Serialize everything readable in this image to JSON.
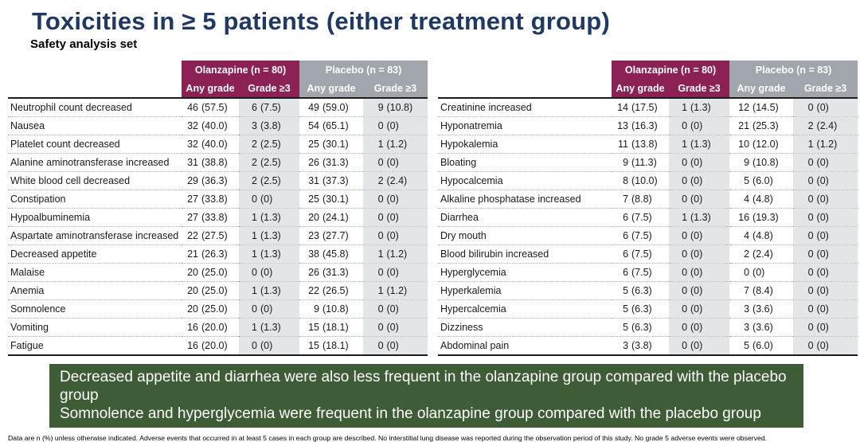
{
  "title": "Toxicities in ≥ 5 patients (either treatment group)",
  "subtitle": "Safety analysis set",
  "colors": {
    "title_navy": "#1F3864",
    "olanzapine_header": "#8B2154",
    "placebo_header": "#A0A6AB",
    "shaded_column": "#E2E6E9",
    "banner_green": "#3E5C35"
  },
  "column_headers": {
    "olanzapine": "Olanzapine (n = 80)",
    "placebo": "Placebo (n = 83)",
    "any_grade": "Any grade",
    "grade_ge3": "Grade ≥3"
  },
  "tables": [
    {
      "rows": [
        {
          "label": "Neutrophil count decreased",
          "cells": [
            "46 (57.5)",
            "6 (7.5)",
            "49 (59.0)",
            "9 (10.8)"
          ]
        },
        {
          "label": "Nausea",
          "cells": [
            "32 (40.0)",
            "3 (3.8)",
            "54 (65.1)",
            "0 (0)"
          ]
        },
        {
          "label": "Platelet count decreased",
          "cells": [
            "32 (40.0)",
            "2 (2.5)",
            "25 (30.1)",
            "1 (1.2)"
          ]
        },
        {
          "label": "Alanine aminotransferase increased",
          "cells": [
            "31 (38.8)",
            "2 (2.5)",
            "26 (31.3)",
            "0 (0)"
          ]
        },
        {
          "label": "White blood cell decreased",
          "cells": [
            "29 (36.3)",
            "2 (2.5)",
            "31 (37.3)",
            "2 (2.4)"
          ]
        },
        {
          "label": "Constipation",
          "cells": [
            "27 (33.8)",
            "0 (0)",
            "25 (30.1)",
            "0 (0)"
          ]
        },
        {
          "label": "Hypoalbuminemia",
          "cells": [
            "27 (33.8)",
            "1 (1.3)",
            "20 (24.1)",
            "0 (0)"
          ]
        },
        {
          "label": "Aspartate aminotransferase increased",
          "cells": [
            "22 (27.5)",
            "1 (1.3)",
            "23 (27.7)",
            "0 (0)"
          ]
        },
        {
          "label": "Decreased appetite",
          "cells": [
            "21 (26.3)",
            "1 (1.3)",
            "38 (45.8)",
            "1 (1.2)"
          ]
        },
        {
          "label": "Malaise",
          "cells": [
            "20 (25.0)",
            "0 (0)",
            "26 (31.3)",
            "0 (0)"
          ]
        },
        {
          "label": "Anemia",
          "cells": [
            "20 (25.0)",
            "1 (1.3)",
            "22 (26.5)",
            "1 (1.2)"
          ]
        },
        {
          "label": "Somnolence",
          "cells": [
            "20 (25.0)",
            "0 (0)",
            "9 (10.8)",
            "0 (0)"
          ]
        },
        {
          "label": "Vomiting",
          "cells": [
            "16 (20.0)",
            "1 (1.3)",
            "15 (18.1)",
            "0 (0)"
          ]
        },
        {
          "label": "Fatigue",
          "cells": [
            "16 (20.0)",
            "0 (0)",
            "15 (18.1)",
            "0 (0)"
          ]
        }
      ]
    },
    {
      "rows": [
        {
          "label": "Creatinine increased",
          "cells": [
            "14 (17.5)",
            "1 (1.3)",
            "12 (14.5)",
            "0 (0)"
          ]
        },
        {
          "label": "Hyponatremia",
          "cells": [
            "13 (16.3)",
            "0 (0)",
            "21 (25.3)",
            "2 (2.4)"
          ]
        },
        {
          "label": "Hypokalemia",
          "cells": [
            "11 (13.8)",
            "1 (1.3)",
            "10 (12.0)",
            "1 (1.2)"
          ]
        },
        {
          "label": "Bloating",
          "cells": [
            "9 (11.3)",
            "0 (0)",
            "9 (10.8)",
            "0 (0)"
          ]
        },
        {
          "label": "Hypocalcemia",
          "cells": [
            "8 (10.0)",
            "0 (0)",
            "5 (6.0)",
            "0 (0)"
          ]
        },
        {
          "label": "Alkaline phosphatase increased",
          "cells": [
            "7 (8.8)",
            "0 (0)",
            "4 (4.8)",
            "0 (0)"
          ]
        },
        {
          "label": "Diarrhea",
          "cells": [
            "6 (7.5)",
            "1 (1.3)",
            "16 (19.3)",
            "0 (0)"
          ]
        },
        {
          "label": "Dry mouth",
          "cells": [
            "6 (7.5)",
            "0 (0)",
            "4 (4.8)",
            "0 (0)"
          ]
        },
        {
          "label": "Blood bilirubin increased",
          "cells": [
            "6 (7.5)",
            "0 (0)",
            "2 (2.4)",
            "0 (0)"
          ]
        },
        {
          "label": "Hyperglycemia",
          "cells": [
            "6 (7.5)",
            "0 (0)",
            "0 (0)",
            "0 (0)"
          ]
        },
        {
          "label": "Hyperkalemia",
          "cells": [
            "5 (6.3)",
            "0 (0)",
            "7 (8.4)",
            "0 (0)"
          ]
        },
        {
          "label": "Hypercalcemia",
          "cells": [
            "5 (6.3)",
            "0 (0)",
            "3 (3.6)",
            "0 (0)"
          ]
        },
        {
          "label": "Dizziness",
          "cells": [
            "5 (6.3)",
            "0 (0)",
            "3 (3.6)",
            "0 (0)"
          ]
        },
        {
          "label": "Abdominal pain",
          "cells": [
            "3 (3.8)",
            "0 (0)",
            "5 (6.0)",
            "0 (0)"
          ]
        }
      ]
    }
  ],
  "banner": {
    "line1": "Decreased appetite and diarrhea were also less frequent in the olanzapine group compared with the placebo group",
    "line2": "Somnolence and hyperglycemia were frequent in the olanzapine group compared with the placebo group"
  },
  "footnote": "Data are n (%) unless otherwise indicated. Adverse events that occurred in at least 5 cases in each group are described. No interstitial lung disease was reported during the observation period of this study. No grade 5 adverse events were observed."
}
